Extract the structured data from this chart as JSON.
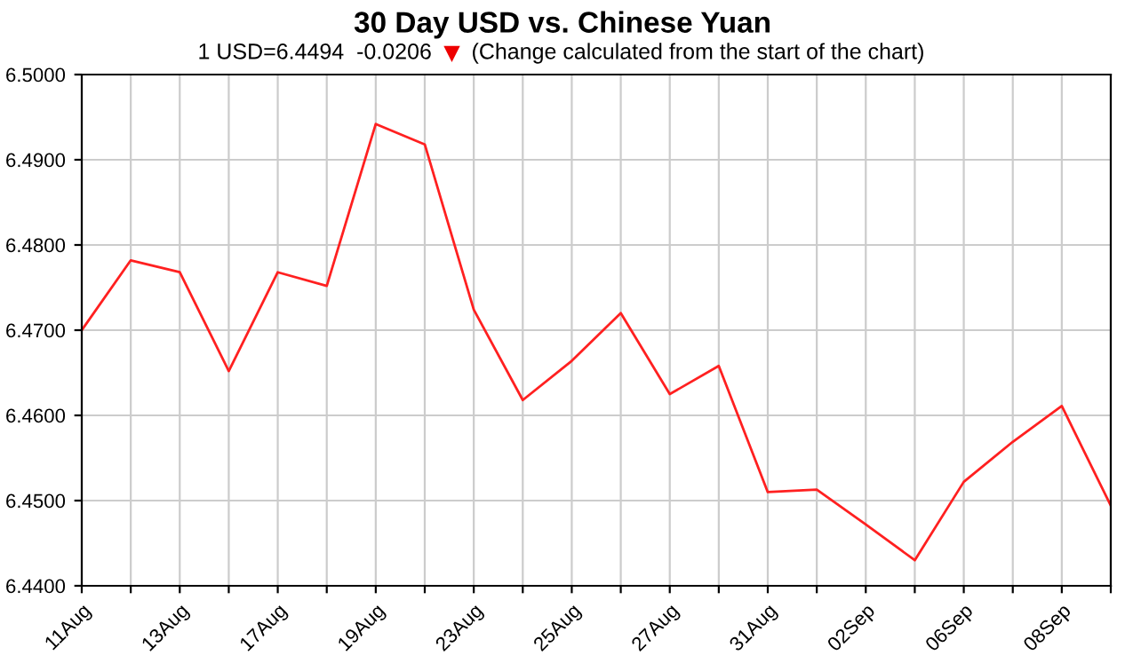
{
  "chart_data": {
    "type": "line",
    "title": "30 Day USD vs. Chinese Yuan",
    "subtitle": "1 USD=6.4494  -0.0206",
    "annotations": [
      "(Change calculated from the start of the chart)"
    ],
    "categories": [
      "11Aug",
      null,
      "13Aug",
      null,
      "17Aug",
      null,
      "19Aug",
      null,
      "23Aug",
      null,
      "25Aug",
      null,
      "27Aug",
      null,
      "31Aug",
      null,
      "02Sep",
      null,
      "06Sep",
      null,
      "08Sep",
      null
    ],
    "series": [
      {
        "color": "#ff2020",
        "values": [
          6.47,
          6.4782,
          6.4768,
          6.4652,
          6.4768,
          6.4752,
          6.4942,
          6.4918,
          6.4724,
          6.4618,
          6.4664,
          6.472,
          6.4625,
          6.4658,
          6.451,
          6.4513,
          6.4472,
          6.443,
          6.4522,
          6.4569,
          6.4611,
          6.4494
        ]
      }
    ],
    "ylim": [
      6.44,
      6.5
    ],
    "yticks": [
      {
        "value": 6.44,
        "label": "6.4400"
      },
      {
        "value": 6.45,
        "label": "6.4500"
      },
      {
        "value": 6.46,
        "label": "6.4600"
      },
      {
        "value": 6.47,
        "label": "6.4700"
      },
      {
        "value": 6.48,
        "label": "6.4800"
      },
      {
        "value": 6.49,
        "label": "6.4900"
      },
      {
        "value": 6.5,
        "label": "6.5000"
      }
    ],
    "grid": true,
    "legend": false,
    "marker": "none",
    "line_style": "solid"
  }
}
